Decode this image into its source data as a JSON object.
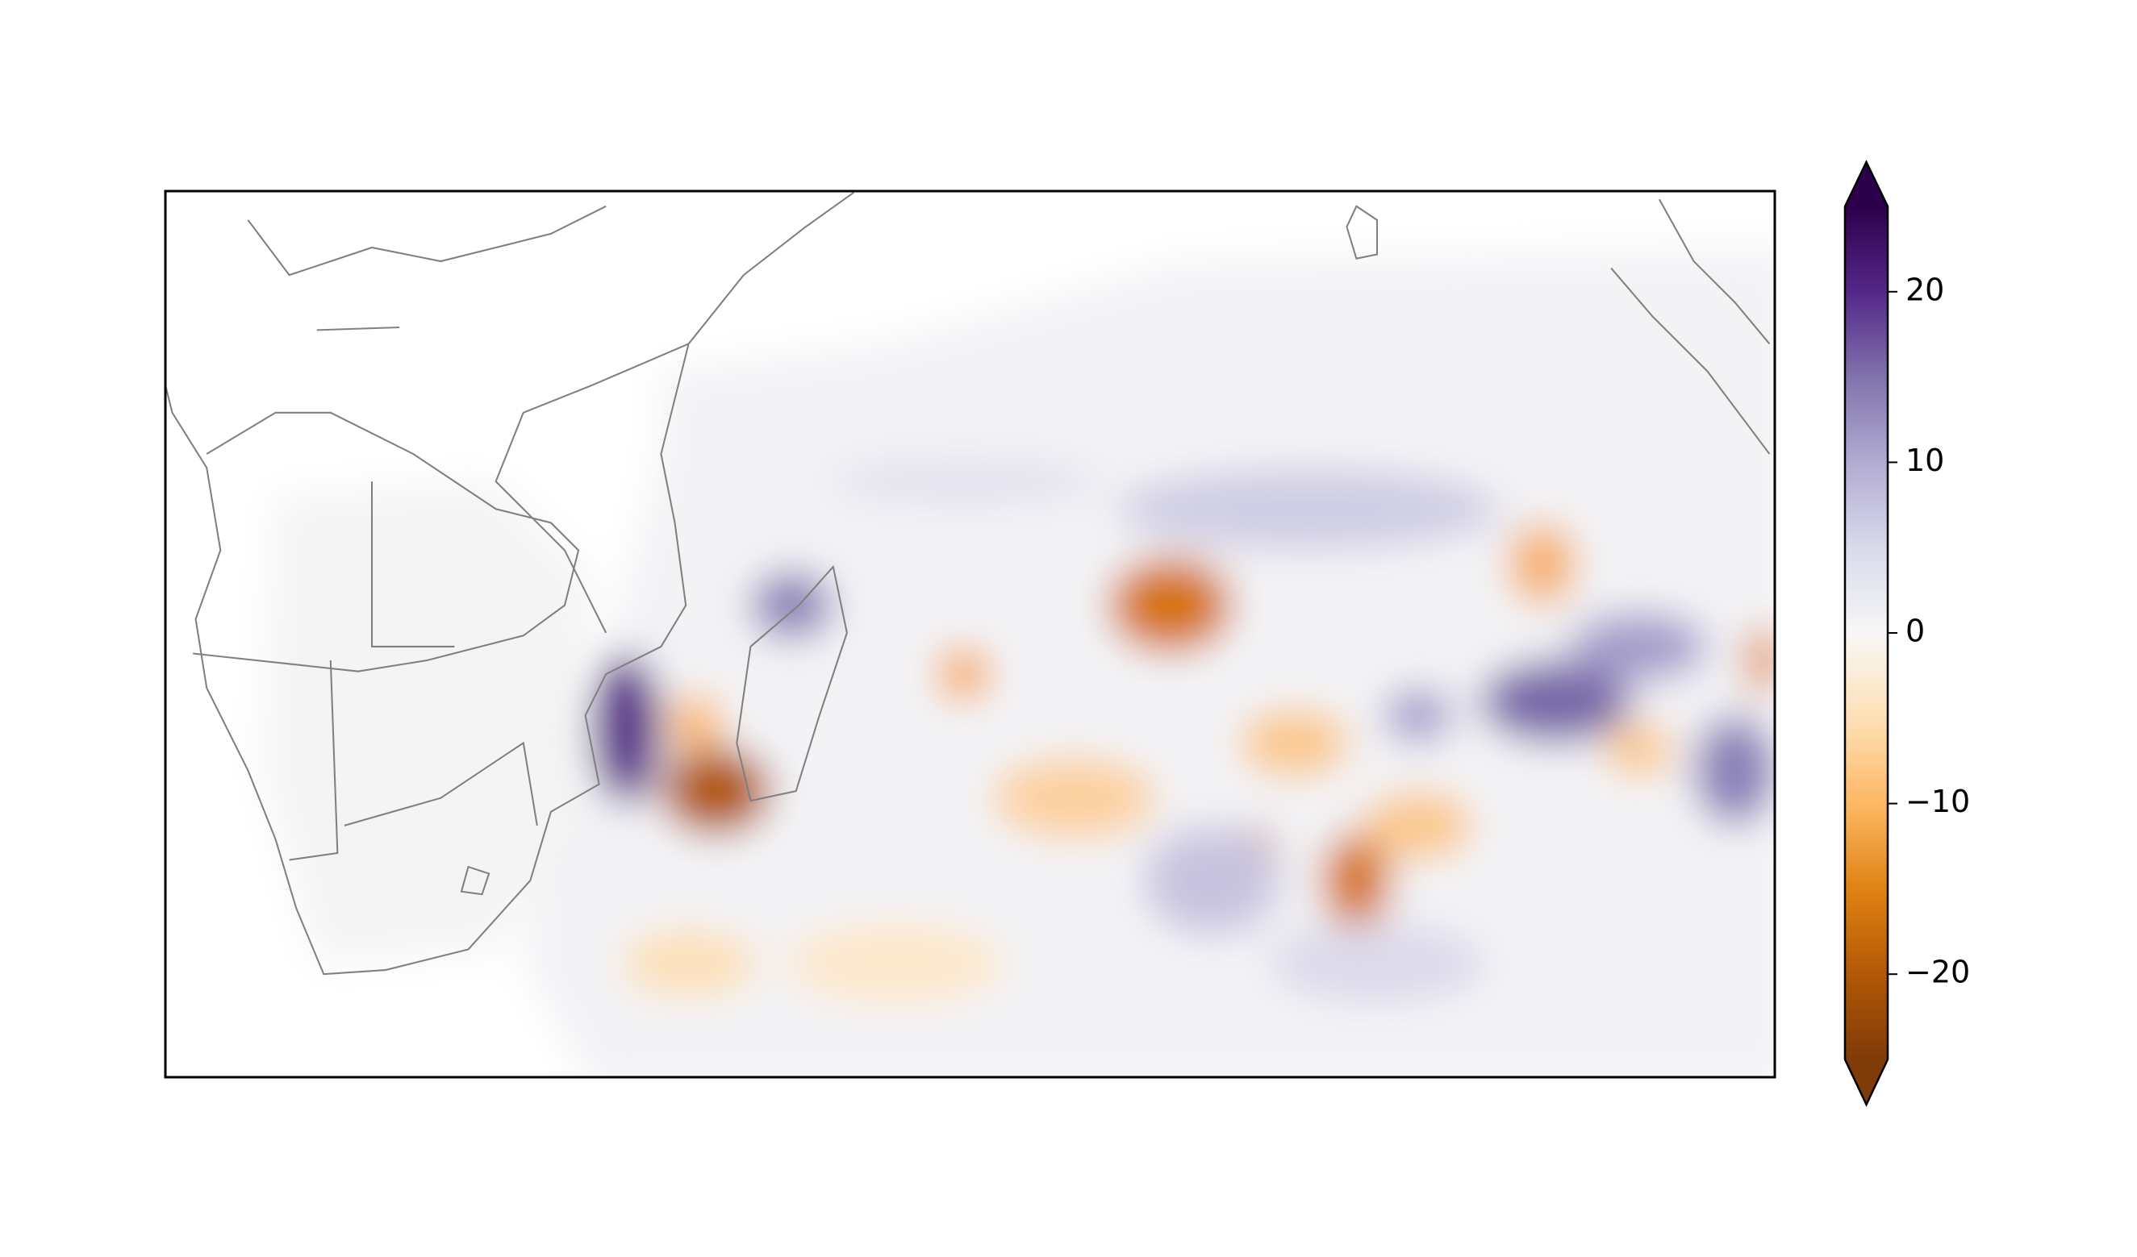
{
  "chart_data": {
    "type": "map",
    "colorbar": {
      "ylim": [
        -25,
        25
      ],
      "yticks": [
        20,
        10,
        0,
        {
          "value": -10,
          "label": "−10"
        },
        {
          "value": -20,
          "label": "−20"
        }
      ],
      "colors": [
        "#2d004b",
        "#542788",
        "#8073ac",
        "#b2abd2",
        "#d8daeb",
        "#f7f7f7",
        "#fee0b6",
        "#fdb863",
        "#e08214",
        "#b35806",
        "#7f3b08"
      ]
    }
  }
}
